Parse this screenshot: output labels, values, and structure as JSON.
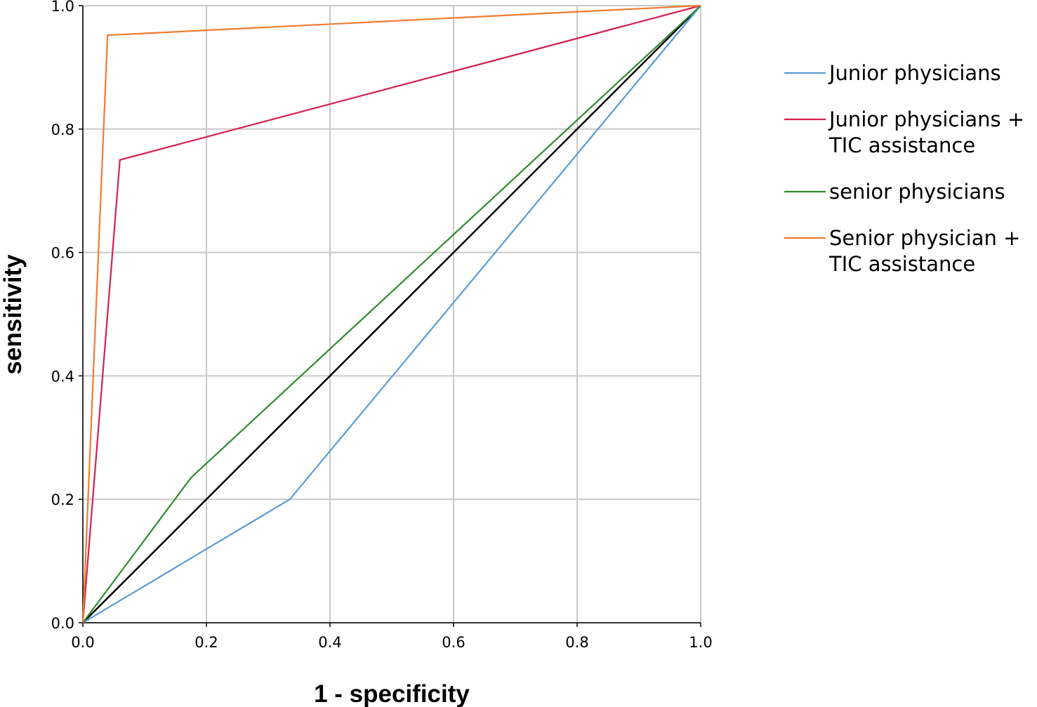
{
  "chart_data": {
    "type": "line",
    "xlabel": "1 - specificity",
    "ylabel": "sensitivity",
    "xlim": [
      0,
      1
    ],
    "ylim": [
      0,
      1
    ],
    "xticks": [
      "0.0",
      "0.2",
      "0.4",
      "0.6",
      "0.8",
      "1.0"
    ],
    "yticks": [
      "0.0",
      "0.2",
      "0.4",
      "0.6",
      "0.8",
      "1.0"
    ],
    "grid": true,
    "legend_position": "right",
    "series": [
      {
        "name": "Junior physicians",
        "name_lines": [
          "Junior physicians"
        ],
        "color": "#5b9bd5",
        "x": [
          0,
          0.335,
          1
        ],
        "y": [
          0,
          0.2,
          1
        ]
      },
      {
        "name": "Junior physicians + TIC assistance",
        "name_lines": [
          "Junior physicians +",
          "TIC assistance"
        ],
        "color": "#d6204f",
        "x": [
          0,
          0.06,
          1
        ],
        "y": [
          0,
          0.75,
          1
        ]
      },
      {
        "name": "senior physicians",
        "name_lines": [
          "senior physicians"
        ],
        "color": "#2e8b2e",
        "x": [
          0,
          0.175,
          1
        ],
        "y": [
          0,
          0.235,
          1
        ]
      },
      {
        "name": "Senior physician + TIC assistance",
        "name_lines": [
          "Senior physician +",
          "TIC assistance"
        ],
        "color": "#f07b33",
        "x": [
          0,
          0.04,
          1
        ],
        "y": [
          0,
          0.952,
          1
        ]
      }
    ],
    "reference_line": {
      "x": [
        0,
        1
      ],
      "y": [
        0,
        1
      ],
      "color": "#000000"
    }
  }
}
